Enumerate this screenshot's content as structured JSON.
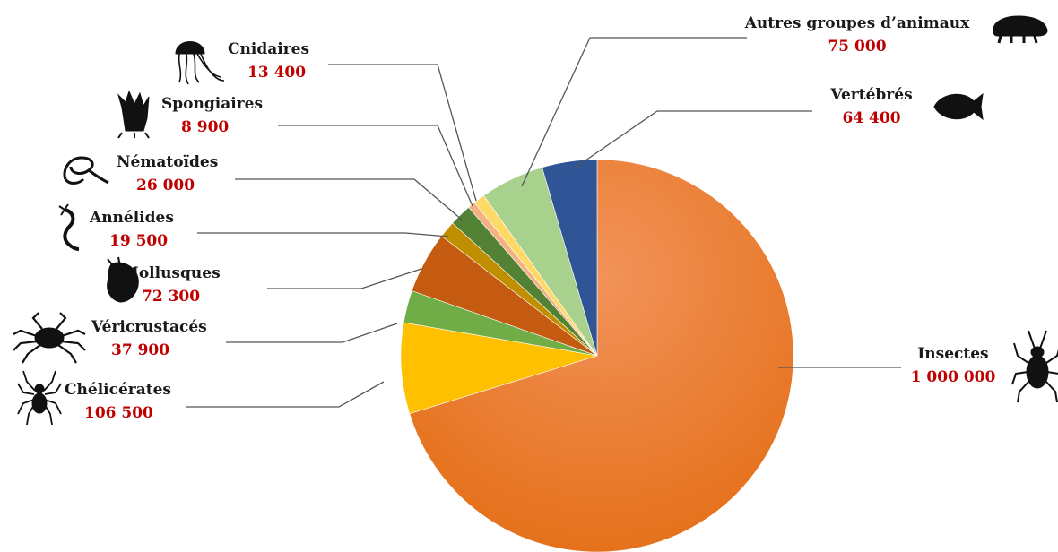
{
  "chart_data": {
    "type": "pie",
    "title": "",
    "value_color": "#c00000",
    "slices": [
      {
        "name": "Insectes",
        "value_label": "1 000 000",
        "value": 1000000,
        "color": "#ed7d31",
        "icon": "beetle-icon"
      },
      {
        "name": "Chélicérates",
        "value_label": "106 500",
        "value": 106500,
        "color": "#ffc000",
        "icon": "spider-icon"
      },
      {
        "name": "Véricrustacés",
        "value_label": "37 900",
        "value": 37900,
        "color": "#70ad47",
        "icon": "crab-icon"
      },
      {
        "name": "Mollusques",
        "value_label": "72 300",
        "value": 72300,
        "color": "#c55a11",
        "icon": "shell-icon"
      },
      {
        "name": "Annélides",
        "value_label": "19 500",
        "value": 19500,
        "color": "#bf8f00",
        "icon": "worm-icon"
      },
      {
        "name": "Nématoïdes",
        "value_label": "26 000",
        "value": 26000,
        "color": "#548235",
        "icon": "nematode-icon"
      },
      {
        "name": "Spongiaires",
        "value_label": "8 900",
        "value": 8900,
        "color": "#f4b183",
        "icon": "sponge-icon"
      },
      {
        "name": "Cnidaires",
        "value_label": "13 400",
        "value": 13400,
        "color": "#ffd966",
        "icon": "jellyfish-icon"
      },
      {
        "name": "Autres groupes d’animaux",
        "value_label": "75 000",
        "value": 75000,
        "color": "#a9d18e",
        "icon": "tardigrade-icon"
      },
      {
        "name": "Vertébrés",
        "value_label": "64 400",
        "value": 64400,
        "color": "#2f5597",
        "icon": "fish-icon"
      }
    ]
  }
}
